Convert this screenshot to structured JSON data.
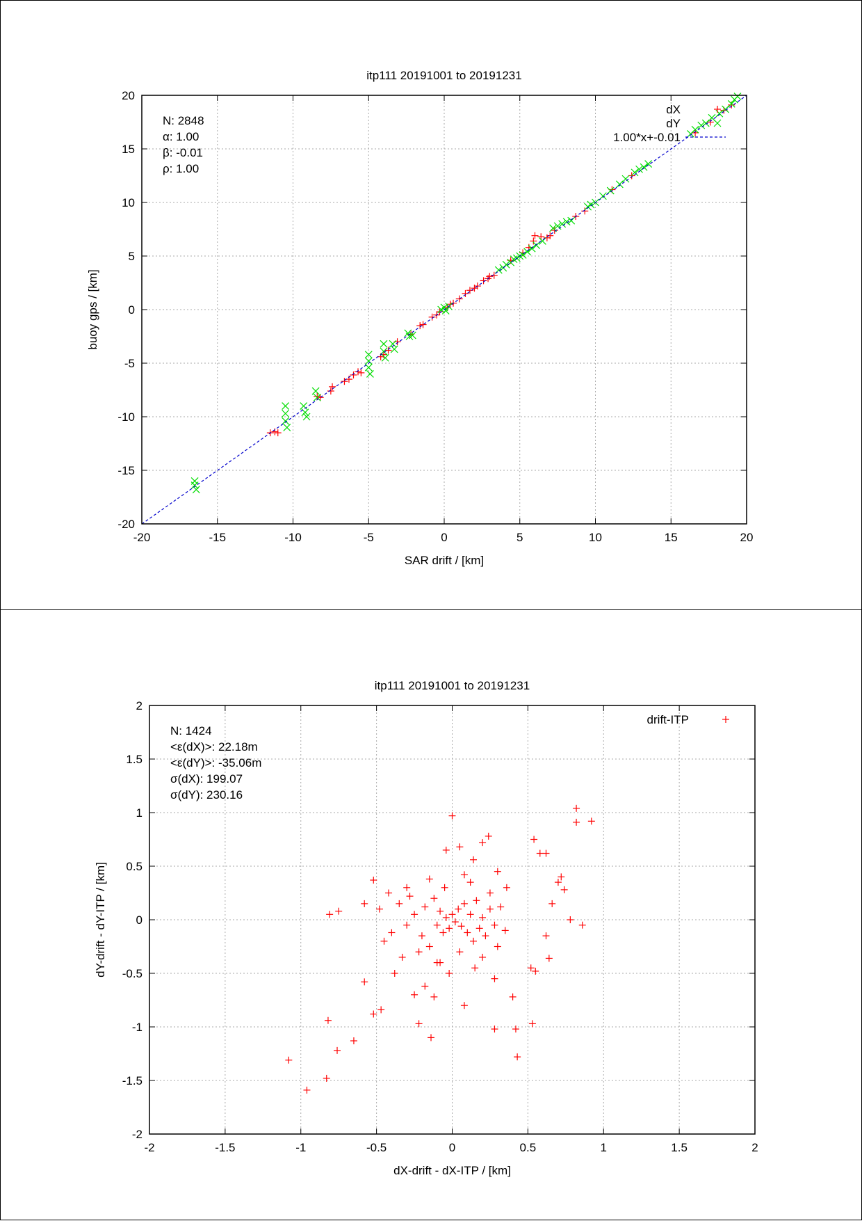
{
  "chart_data": [
    {
      "type": "scatter",
      "title": "itp111 20191001 to 20191231",
      "xlabel": "SAR drift / [km]",
      "ylabel": "buoy gps / [km]",
      "xlim": [
        -20,
        20
      ],
      "ylim": [
        -20,
        20
      ],
      "xticks": [
        "-20",
        "-15",
        "-10",
        "-5",
        "0",
        "5",
        "10",
        "15",
        "20"
      ],
      "yticks": [
        "-20",
        "-15",
        "-10",
        "-5",
        "0",
        "5",
        "10",
        "15",
        "20"
      ],
      "grid": true,
      "legend_position": "top-right",
      "stats": [
        "N: 2848",
        "α: 1.00",
        "β: -0.01",
        "ρ: 1.00"
      ],
      "series": [
        {
          "name": "dX",
          "marker": "+",
          "color": "#ff0000",
          "points": [
            [
              -11.5,
              -11.5
            ],
            [
              -11.0,
              -11.5
            ],
            [
              -11.2,
              -11.4
            ],
            [
              -8.2,
              -8.2
            ],
            [
              -8.4,
              -8.1
            ],
            [
              -7.5,
              -7.6
            ],
            [
              -7.4,
              -7.2
            ],
            [
              -6.6,
              -6.7
            ],
            [
              -6.3,
              -6.5
            ],
            [
              -6.0,
              -6.1
            ],
            [
              -5.7,
              -5.8
            ],
            [
              -5.5,
              -5.9
            ],
            [
              -4.2,
              -4.4
            ],
            [
              -4.0,
              -4.2
            ],
            [
              -3.7,
              -3.8
            ],
            [
              -3.1,
              -3.0
            ],
            [
              -2.2,
              -2.3
            ],
            [
              -1.6,
              -1.5
            ],
            [
              -1.4,
              -1.4
            ],
            [
              -0.8,
              -0.7
            ],
            [
              -0.5,
              -0.5
            ],
            [
              -0.3,
              -0.2
            ],
            [
              0.2,
              0.2
            ],
            [
              0.4,
              0.5
            ],
            [
              0.6,
              0.6
            ],
            [
              1.0,
              1.0
            ],
            [
              1.4,
              1.5
            ],
            [
              1.7,
              1.8
            ],
            [
              2.0,
              2.0
            ],
            [
              2.2,
              2.2
            ],
            [
              2.6,
              2.7
            ],
            [
              2.9,
              2.9
            ],
            [
              3.0,
              3.1
            ],
            [
              3.3,
              3.2
            ],
            [
              4.4,
              4.6
            ],
            [
              5.2,
              5.3
            ],
            [
              5.6,
              5.8
            ],
            [
              5.9,
              6.4
            ],
            [
              6.0,
              6.9
            ],
            [
              6.4,
              6.8
            ],
            [
              6.8,
              6.7
            ],
            [
              7.0,
              6.9
            ],
            [
              7.3,
              7.4
            ],
            [
              8.7,
              8.7
            ],
            [
              9.3,
              9.2
            ],
            [
              11.1,
              11.2
            ],
            [
              12.4,
              12.5
            ],
            [
              16.6,
              16.5
            ],
            [
              17.6,
              17.5
            ],
            [
              18.5,
              18.6
            ],
            [
              19.0,
              19.1
            ]
          ]
        },
        {
          "name": "dY",
          "marker": "×",
          "color": "#00dd00",
          "points": [
            [
              -16.5,
              -16.0
            ],
            [
              -16.5,
              -16.4
            ],
            [
              -16.4,
              -16.8
            ],
            [
              -10.5,
              -9.0
            ],
            [
              -10.5,
              -9.7
            ],
            [
              -10.5,
              -10.4
            ],
            [
              -10.4,
              -11.0
            ],
            [
              -9.3,
              -9.0
            ],
            [
              -9.2,
              -9.6
            ],
            [
              -9.1,
              -10.0
            ],
            [
              -8.5,
              -7.6
            ],
            [
              -8.4,
              -8.2
            ],
            [
              -5.0,
              -4.2
            ],
            [
              -5.0,
              -4.8
            ],
            [
              -5.0,
              -5.4
            ],
            [
              -4.9,
              -6.0
            ],
            [
              -4.0,
              -3.2
            ],
            [
              -4.0,
              -3.9
            ],
            [
              -3.9,
              -4.5
            ],
            [
              -3.4,
              -3.2
            ],
            [
              -3.3,
              -3.7
            ],
            [
              -2.4,
              -2.2
            ],
            [
              -2.3,
              -2.5
            ],
            [
              -2.1,
              -2.4
            ],
            [
              -0.2,
              0.0
            ],
            [
              0.0,
              0.2
            ],
            [
              0.1,
              -0.1
            ],
            [
              0.3,
              0.3
            ],
            [
              3.6,
              3.7
            ],
            [
              3.9,
              3.9
            ],
            [
              4.1,
              4.2
            ],
            [
              4.4,
              4.4
            ],
            [
              4.6,
              4.7
            ],
            [
              4.8,
              4.8
            ],
            [
              5.0,
              5.0
            ],
            [
              5.2,
              5.1
            ],
            [
              5.5,
              5.4
            ],
            [
              5.8,
              5.7
            ],
            [
              6.1,
              6.0
            ],
            [
              6.5,
              6.4
            ],
            [
              7.2,
              7.6
            ],
            [
              7.5,
              7.8
            ],
            [
              7.8,
              8.0
            ],
            [
              8.1,
              8.2
            ],
            [
              8.4,
              8.3
            ],
            [
              9.5,
              9.6
            ],
            [
              9.7,
              9.8
            ],
            [
              10.0,
              10.0
            ],
            [
              10.5,
              10.6
            ],
            [
              11.0,
              11.1
            ],
            [
              11.6,
              11.7
            ],
            [
              12.0,
              12.2
            ],
            [
              12.6,
              12.8
            ],
            [
              12.9,
              13.1
            ],
            [
              13.2,
              13.3
            ],
            [
              13.5,
              13.6
            ],
            [
              16.3,
              16.4
            ],
            [
              16.6,
              16.8
            ],
            [
              17.0,
              17.2
            ],
            [
              17.3,
              17.4
            ],
            [
              17.7,
              17.9
            ],
            [
              18.2,
              18.3
            ],
            [
              18.6,
              18.7
            ],
            [
              19.0,
              19.2
            ],
            [
              19.2,
              19.6
            ],
            [
              19.4,
              19.9
            ]
          ]
        },
        {
          "name": "1.00*x+-0.01",
          "type": "line",
          "style": "dashed",
          "color": "#0000cc",
          "points": [
            [
              -20,
              -20.01
            ],
            [
              20,
              19.99
            ]
          ]
        }
      ]
    },
    {
      "type": "scatter",
      "title": "itp111 20191001 to 20191231",
      "xlabel": "dX-drift - dX-ITP / [km]",
      "ylabel": "dY-drift - dY-ITP / [km]",
      "xlim": [
        -2,
        2
      ],
      "ylim": [
        -2,
        2
      ],
      "xticks": [
        "-2",
        "-1.5",
        "-1",
        "-0.5",
        "0",
        "0.5",
        "1",
        "1.5",
        "2"
      ],
      "yticks": [
        "-2",
        "-1.5",
        "-1",
        "-0.5",
        "0",
        "0.5",
        "1",
        "1.5",
        "2"
      ],
      "grid": true,
      "legend_position": "top-right",
      "stats": [
        "N: 1424",
        "<ε(dX)>:  22.18m",
        "<ε(dY)>: -35.06m",
        "σ(dX):  199.07",
        "σ(dY):  230.16"
      ],
      "series": [
        {
          "name": "drift-ITP",
          "marker": "+",
          "color": "#ff0000",
          "points": [
            [
              -1.08,
              -1.31
            ],
            [
              -0.96,
              -1.59
            ],
            [
              -0.83,
              -1.48
            ],
            [
              -0.82,
              -0.94
            ],
            [
              -0.76,
              -1.22
            ],
            [
              -0.65,
              -1.13
            ],
            [
              -0.52,
              -0.88
            ],
            [
              -0.58,
              -0.58
            ],
            [
              -0.47,
              -0.84
            ],
            [
              -0.81,
              0.05
            ],
            [
              -0.75,
              0.08
            ],
            [
              -0.58,
              0.15
            ],
            [
              -0.52,
              0.37
            ],
            [
              -0.48,
              0.1
            ],
            [
              -0.45,
              -0.2
            ],
            [
              -0.42,
              0.25
            ],
            [
              -0.38,
              -0.5
            ],
            [
              -0.33,
              -0.35
            ],
            [
              -0.3,
              0.3
            ],
            [
              -0.25,
              -0.7
            ],
            [
              -0.22,
              -0.97
            ],
            [
              -0.18,
              -0.62
            ],
            [
              -0.14,
              -1.1
            ],
            [
              -0.12,
              -0.72
            ],
            [
              -0.08,
              -0.4
            ],
            [
              0.0,
              0.97
            ],
            [
              -0.04,
              0.65
            ],
            [
              0.05,
              0.68
            ],
            [
              0.08,
              -0.8
            ],
            [
              0.14,
              0.56
            ],
            [
              0.2,
              0.72
            ],
            [
              0.24,
              0.78
            ],
            [
              0.28,
              -0.55
            ],
            [
              0.3,
              0.45
            ],
            [
              0.36,
              0.3
            ],
            [
              0.4,
              -0.72
            ],
            [
              0.42,
              -1.02
            ],
            [
              0.28,
              -1.02
            ],
            [
              0.43,
              -1.28
            ],
            [
              0.53,
              -0.97
            ],
            [
              0.52,
              -0.45
            ],
            [
              0.55,
              -0.48
            ],
            [
              0.54,
              0.75
            ],
            [
              0.58,
              0.62
            ],
            [
              0.62,
              0.62
            ],
            [
              0.62,
              -0.15
            ],
            [
              0.64,
              -0.36
            ],
            [
              0.66,
              0.15
            ],
            [
              0.7,
              0.35
            ],
            [
              0.72,
              0.4
            ],
            [
              0.74,
              0.28
            ],
            [
              0.78,
              0.0
            ],
            [
              0.82,
              1.04
            ],
            [
              0.82,
              0.91
            ],
            [
              0.92,
              0.92
            ],
            [
              0.86,
              -0.05
            ],
            [
              -0.3,
              -0.05
            ],
            [
              -0.25,
              0.05
            ],
            [
              -0.2,
              -0.15
            ],
            [
              -0.18,
              0.12
            ],
            [
              -0.15,
              -0.25
            ],
            [
              -0.12,
              0.2
            ],
            [
              -0.1,
              -0.05
            ],
            [
              -0.08,
              0.08
            ],
            [
              -0.06,
              -0.12
            ],
            [
              -0.04,
              0.02
            ],
            [
              -0.02,
              -0.08
            ],
            [
              0.0,
              0.05
            ],
            [
              0.02,
              -0.02
            ],
            [
              0.04,
              0.1
            ],
            [
              0.06,
              -0.06
            ],
            [
              0.08,
              0.15
            ],
            [
              0.1,
              -0.12
            ],
            [
              0.12,
              0.05
            ],
            [
              0.14,
              -0.2
            ],
            [
              0.16,
              0.18
            ],
            [
              0.18,
              -0.08
            ],
            [
              0.2,
              0.02
            ],
            [
              0.22,
              -0.15
            ],
            [
              0.25,
              0.1
            ],
            [
              0.28,
              -0.05
            ],
            [
              0.32,
              0.12
            ],
            [
              0.35,
              -0.1
            ],
            [
              -0.35,
              0.15
            ],
            [
              -0.4,
              -0.12
            ],
            [
              -0.28,
              0.22
            ],
            [
              -0.22,
              -0.3
            ],
            [
              -0.05,
              0.3
            ],
            [
              0.05,
              -0.3
            ],
            [
              0.12,
              0.35
            ],
            [
              0.2,
              -0.35
            ],
            [
              -0.1,
              -0.4
            ],
            [
              0.08,
              0.42
            ],
            [
              -0.15,
              0.38
            ],
            [
              0.25,
              0.25
            ],
            [
              0.3,
              -0.25
            ],
            [
              -0.02,
              -0.5
            ],
            [
              0.15,
              -0.45
            ]
          ]
        }
      ]
    }
  ]
}
